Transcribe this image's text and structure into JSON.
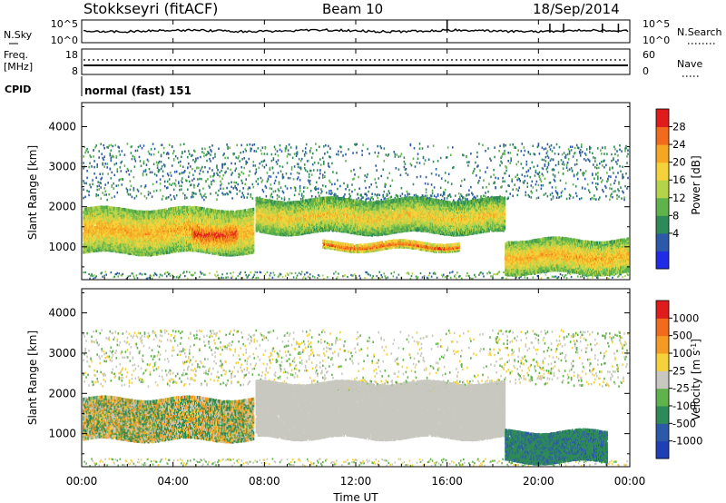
{
  "header": {
    "station": "Stokkseyri (fitACF)",
    "beam": "Beam 10",
    "date": "18/Sep/2014"
  },
  "noise_panel": {
    "left_label": "N.Sky",
    "left_ticks": [
      "10^5",
      "10^0"
    ],
    "right_ticks": [
      "10^5",
      "10^0"
    ],
    "right_label": "N.Search"
  },
  "freq_panel": {
    "left_label_1": "Freq.",
    "left_label_2": "[MHz]",
    "left_ticks": [
      "18",
      "8"
    ],
    "right_ticks": [
      "60",
      "0"
    ],
    "right_label": "Nave"
  },
  "cpid": {
    "label": "CPID",
    "text": "normal (fast) 151"
  },
  "time_axis": {
    "label": "Time UT",
    "ticks": [
      "00:00",
      "04:00",
      "08:00",
      "12:00",
      "16:00",
      "20:00",
      "00:00"
    ]
  },
  "power_panel": {
    "ylabel": "Slant Range [km]",
    "yticks": [
      "4000",
      "3000",
      "2000",
      "1000"
    ],
    "colorbar_label": "Power [dB]",
    "colorbar_ticks": [
      "28",
      "24",
      "20",
      "16",
      "12",
      "8",
      "4"
    ],
    "colors": [
      "#1f2be6",
      "#2c5aa8",
      "#2e8b57",
      "#5fb34a",
      "#b4d24a",
      "#f5d23a",
      "#f5a623",
      "#f26a1b",
      "#e01b1b"
    ]
  },
  "velocity_panel": {
    "ylabel": "Slant Range [km]",
    "yticks": [
      "4000",
      "3000",
      "2000",
      "1000"
    ],
    "colorbar_label": "Velocity [m s",
    "colorbar_label_sup": "-1",
    "colorbar_label_end": "]",
    "colorbar_ticks": [
      "1000",
      "500",
      "100",
      "25",
      "-25",
      "-100",
      "-500",
      "-1000"
    ],
    "colors": [
      "#1f3fb4",
      "#2c5aa8",
      "#2e8b57",
      "#5fb34a",
      "#c8c8c0",
      "#f5d23a",
      "#f59a23",
      "#f26a1b",
      "#e01b1b"
    ]
  },
  "chart_data": [
    {
      "type": "heatmap",
      "title": "Power",
      "xlabel": "Time UT",
      "ylabel": "Slant Range [km]",
      "x_range_hours": [
        0,
        24
      ],
      "ylim": [
        180,
        4600
      ],
      "colorbar": {
        "label": "Power [dB]",
        "range": [
          0,
          31
        ],
        "ticks": [
          4,
          8,
          12,
          16,
          20,
          24,
          28
        ]
      },
      "bands": [
        {
          "t_start": 0.0,
          "t_end": 7.5,
          "range_low": 900,
          "range_high": 2000,
          "value": 22
        },
        {
          "t_start": 4.8,
          "t_end": 6.8,
          "range_low": 1000,
          "range_high": 1750,
          "value": 28
        },
        {
          "t_start": 7.6,
          "t_end": 18.5,
          "range_low": 1400,
          "range_high": 2200,
          "value": 20
        },
        {
          "t_start": 10.5,
          "t_end": 16.5,
          "range_low": 980,
          "range_high": 1150,
          "value": 28
        },
        {
          "t_start": 18.5,
          "t_end": 24.0,
          "range_low": 400,
          "range_high": 1200,
          "value": 22
        }
      ]
    },
    {
      "type": "heatmap",
      "title": "Velocity",
      "xlabel": "Time UT",
      "ylabel": "Slant Range [km]",
      "x_range_hours": [
        0,
        24
      ],
      "ylim": [
        180,
        4600
      ],
      "colorbar": {
        "label": "Velocity [m s-1]",
        "ticks": [
          1000,
          500,
          100,
          25,
          -25,
          -100,
          -500,
          -1000
        ]
      },
      "bands": [
        {
          "t_start": 0.0,
          "t_end": 7.5,
          "range_low": 900,
          "range_high": 1900,
          "value": -50
        },
        {
          "t_start": 7.6,
          "t_end": 18.5,
          "range_low": 950,
          "range_high": 2300,
          "value": 0
        },
        {
          "t_start": 18.5,
          "t_end": 23.0,
          "range_low": 350,
          "range_high": 1100,
          "value": -400
        }
      ]
    }
  ]
}
